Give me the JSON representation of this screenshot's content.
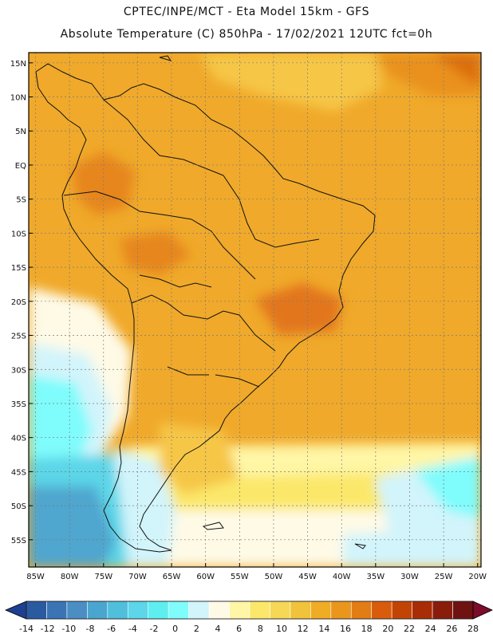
{
  "title": {
    "line1": "CPTEC/INPE/MCT -  Eta Model 15km - GFS",
    "line2": "Absolute Temperature (C) 850hPa - 17/02/2021 12UTC fct=0h"
  },
  "map": {
    "lat_labels": [
      "15N",
      "10N",
      "5N",
      "EQ",
      "5S",
      "10S",
      "15S",
      "20S",
      "25S",
      "30S",
      "35S",
      "40S",
      "45S",
      "50S",
      "55S"
    ],
    "lon_labels": [
      "85W",
      "80W",
      "75W",
      "70W",
      "65W",
      "60W",
      "55W",
      "50W",
      "45W",
      "40W",
      "35W",
      "30W",
      "25W",
      "20W"
    ],
    "lon_range": [
      -86,
      -19.5
    ],
    "lat_range": [
      -59,
      16.5
    ]
  },
  "colorbar": {
    "labels": [
      "-14",
      "-12",
      "-10",
      "-8",
      "-6",
      "-4",
      "-2",
      "0",
      "2",
      "4",
      "6",
      "8",
      "10",
      "12",
      "14",
      "16",
      "18",
      "20",
      "22",
      "24",
      "26",
      "28"
    ],
    "colors": [
      "#1f3f8f",
      "#2a5aa0",
      "#3a74b4",
      "#4a8ec4",
      "#4aa6cf",
      "#4fbfdc",
      "#5cd6e8",
      "#5feef0",
      "#7ffcfc",
      "#d2f4fb",
      "#fefae6",
      "#fff6a6",
      "#fbe86a",
      "#f6d756",
      "#f1c33c",
      "#f0ac24",
      "#ea961c",
      "#e27c14",
      "#d85c0c",
      "#c24404",
      "#a82c06",
      "#8a1c0c",
      "#6e1212",
      "#7c0c2a"
    ]
  },
  "colors": {
    "land_warm": "#ee9f22",
    "ocean_warm": "#f4b02c",
    "hot": "#e8821a",
    "pale_yellow": "#fff6a6",
    "cream": "#fefae6",
    "light_cyan": "#d2f4fb",
    "cyan": "#7ffcfc",
    "blue_cold": "#4fa6cf",
    "coast": "#111111"
  }
}
